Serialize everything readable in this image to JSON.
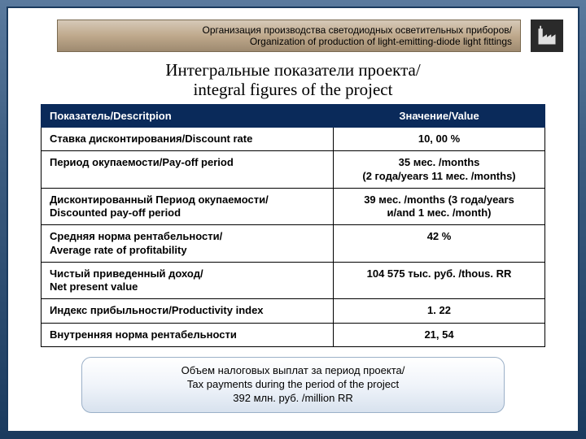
{
  "header": {
    "line1": "Организация производства светодиодных осветительных приборов/",
    "line2": "Organization of production of light-emitting-diode light fittings"
  },
  "title": {
    "line1": "Интегральные показатели проекта/",
    "line2": "integral figures of the project"
  },
  "table": {
    "head": {
      "desc": "Показатель/Descritpion",
      "val": "Значение/Value"
    },
    "rows": [
      {
        "desc": "Ставка  дисконтирования/Discount rate",
        "val": "10, 00 %"
      },
      {
        "desc": "Период  окупаемости/Pay-off period",
        "val": "35 мес. /months\n(2 года/years 11 мес. /months)"
      },
      {
        "desc": "Дисконтированный  Период  окупаемости/\nDiscounted  pay-off period",
        "val": "39 мес. /months (3 года/years\nи/and 1 мес. /month)"
      },
      {
        "desc": "Средняя  норма  рентабельности/\nAverage rate  of profitability",
        "val": "42 %"
      },
      {
        "desc": "Чистый  приведенный   доход/\nNet present value",
        "val": "104 575 тыс. руб. /thous. RR"
      },
      {
        "desc": "Индекс  прибыльности/Productivity index",
        "val": "1. 22"
      },
      {
        "desc": "Внутренняя  норма  рентабельности",
        "val": "21, 54"
      }
    ]
  },
  "footer": {
    "line1": "Объем налоговых выплат за период проекта/",
    "line2": "Tax payments  during the period of the project",
    "line3": "392 млн. руб. /million RR"
  },
  "colors": {
    "header_grad_top": "#d6c9b8",
    "header_grad_bot": "#9e8a70",
    "th_bg": "#0a2a5a",
    "slide_bg": "#ffffff",
    "page_grad_top": "#5a7a9e",
    "page_grad_bot": "#1a3a5e"
  }
}
